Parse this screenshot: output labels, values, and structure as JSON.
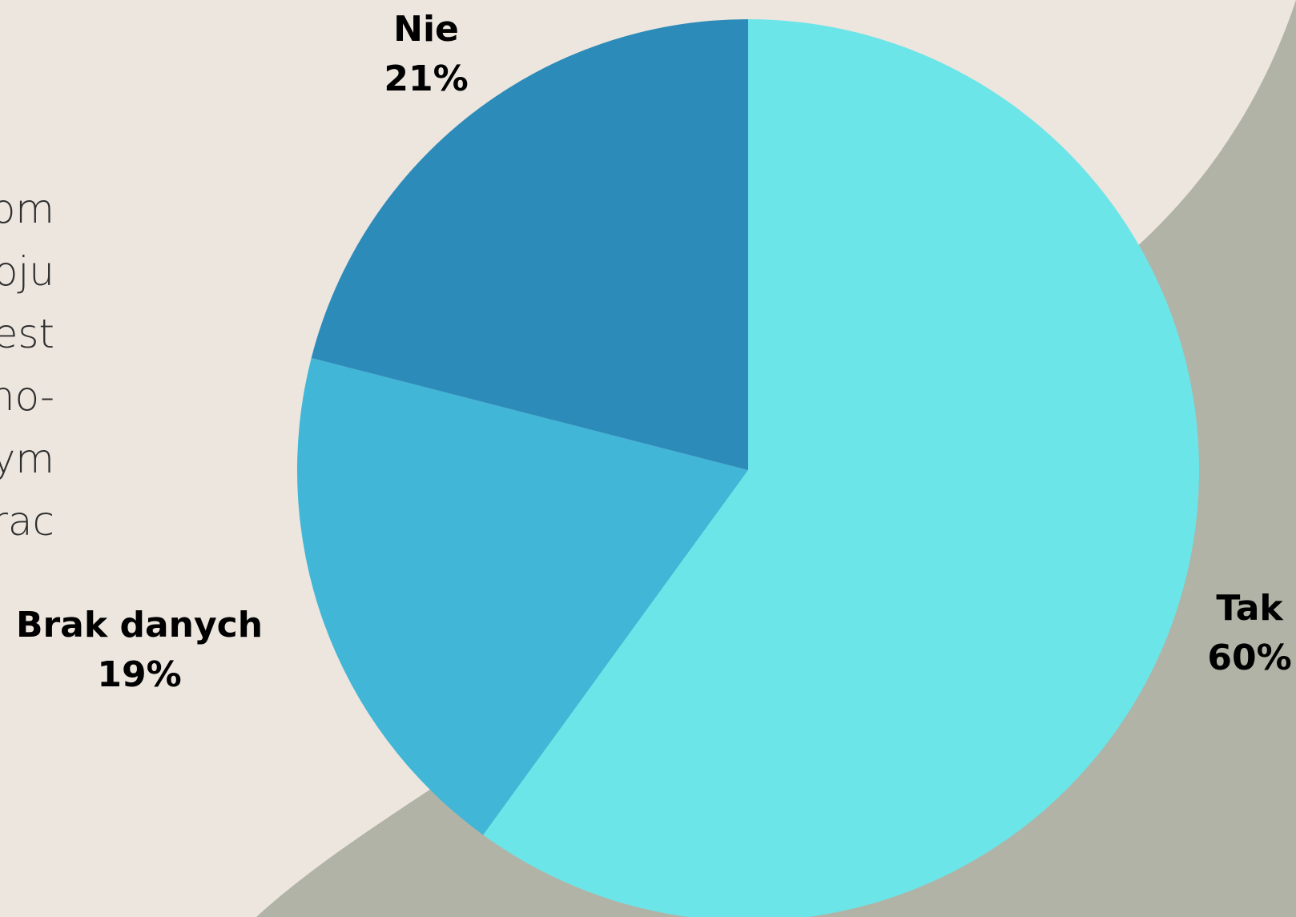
{
  "side_text": {
    "lines": [
      "om",
      "oju",
      "est",
      "no-",
      "ym",
      "rac"
    ]
  },
  "colors": {
    "background": "#ece6df",
    "shape": "#b1b3a6"
  },
  "chart_data": {
    "type": "pie",
    "title": "",
    "legend": "none",
    "start_angle_deg": 0,
    "direction": "clockwise",
    "slices": [
      {
        "label": "Tak",
        "value": 60,
        "value_label": "60%",
        "color": "#6ce5e8"
      },
      {
        "label": "Brak danych",
        "value": 19,
        "value_label": "19%",
        "color": "#41b6d6"
      },
      {
        "label": "Nie",
        "value": 21,
        "value_label": "21%",
        "color": "#2d8bba"
      }
    ]
  }
}
